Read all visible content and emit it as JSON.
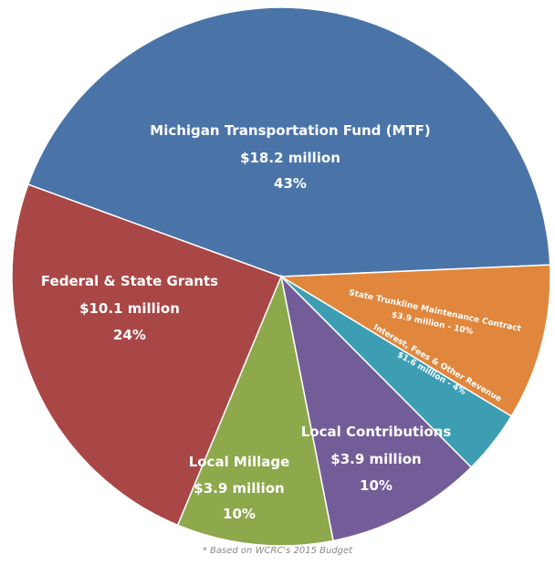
{
  "chart_data": {
    "type": "pie",
    "slices": [
      {
        "name": "Michigan Transportation Fund (MTF)",
        "value_label": "$18.2 million",
        "percent_label": "43%",
        "value": 18.2,
        "color": "#4a74a8"
      },
      {
        "name": "State Trunkline Maintenance Contract",
        "value_label": "$3.9 million - 10%",
        "value": 3.9,
        "color": "#e0873d"
      },
      {
        "name": "Interest, Fees & Other Revenue",
        "value_label": "$1.6 million - 4%",
        "value": 1.6,
        "color": "#3d9eb3"
      },
      {
        "name": "Local Contributions",
        "value_label": "$3.9 million",
        "percent_label": "10%",
        "value": 3.9,
        "color": "#735d99"
      },
      {
        "name": "Local Millage",
        "value_label": "$3.9 million",
        "percent_label": "10%",
        "value": 3.9,
        "color": "#8ea84c"
      },
      {
        "name": "Federal & State Grants",
        "value_label": "$10.1 million",
        "percent_label": "24%",
        "value": 10.1,
        "color": "#a94746"
      }
    ]
  },
  "footnote": "* Based on WCRC's 2015 Budget"
}
